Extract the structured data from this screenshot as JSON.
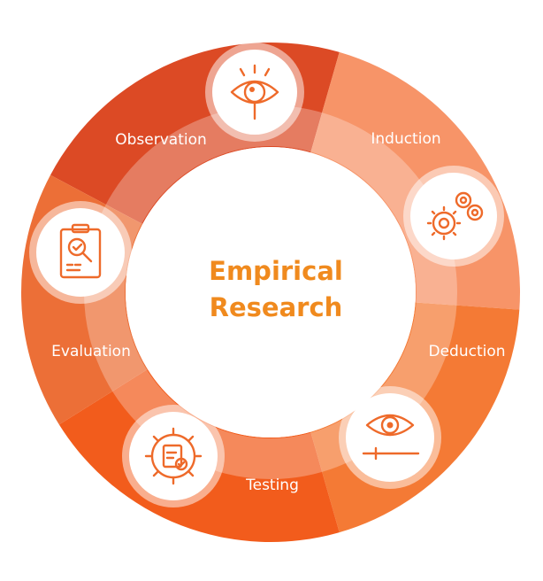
{
  "center": {
    "line1": "Empirical",
    "line2": "Research"
  },
  "stages": [
    {
      "label": "Observation",
      "icon": "eye-magnifier-icon",
      "color": "#dc4a25"
    },
    {
      "label": "Induction",
      "icon": "gears-icon",
      "color": "#f79468"
    },
    {
      "label": "Deduction",
      "icon": "eye-slider-icon",
      "color": "#f47a35"
    },
    {
      "label": "Testing",
      "icon": "gear-clipboard-icon",
      "color": "#f25c1c"
    },
    {
      "label": "Evaluation",
      "icon": "clipboard-checklist-icon",
      "color": "#ec6f37"
    }
  ],
  "colors": {
    "center_text": "#f08a1e",
    "inner_ring": "#f6b196",
    "icon": "#ee6a2a",
    "label": "#ffffff"
  }
}
